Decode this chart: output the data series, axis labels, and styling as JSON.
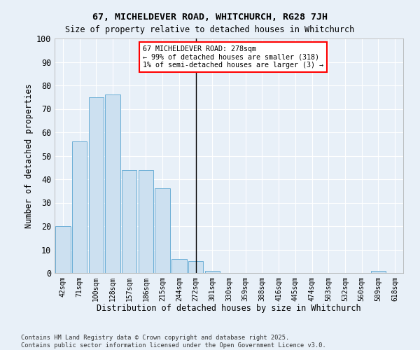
{
  "title1": "67, MICHELDEVER ROAD, WHITCHURCH, RG28 7JH",
  "title2": "Size of property relative to detached houses in Whitchurch",
  "xlabel": "Distribution of detached houses by size in Whitchurch",
  "ylabel": "Number of detached properties",
  "categories": [
    "42sqm",
    "71sqm",
    "100sqm",
    "128sqm",
    "157sqm",
    "186sqm",
    "215sqm",
    "244sqm",
    "272sqm",
    "301sqm",
    "330sqm",
    "359sqm",
    "388sqm",
    "416sqm",
    "445sqm",
    "474sqm",
    "503sqm",
    "532sqm",
    "560sqm",
    "589sqm",
    "618sqm"
  ],
  "values": [
    20,
    56,
    75,
    76,
    44,
    44,
    36,
    6,
    5,
    1,
    0,
    0,
    0,
    0,
    0,
    0,
    0,
    0,
    0,
    1,
    0
  ],
  "bar_color": "#cce0f0",
  "bar_edge_color": "#6baed6",
  "vline_x_index": 8,
  "marker_label": "67 MICHELDEVER ROAD: 278sqm\n← 99% of detached houses are smaller (318)\n1% of semi-detached houses are larger (3) →",
  "ylim": [
    0,
    100
  ],
  "yticks": [
    0,
    10,
    20,
    30,
    40,
    50,
    60,
    70,
    80,
    90,
    100
  ],
  "bg_color": "#e8f0f8",
  "grid_color": "#ffffff",
  "footer1": "Contains HM Land Registry data © Crown copyright and database right 2025.",
  "footer2": "Contains public sector information licensed under the Open Government Licence v3.0."
}
